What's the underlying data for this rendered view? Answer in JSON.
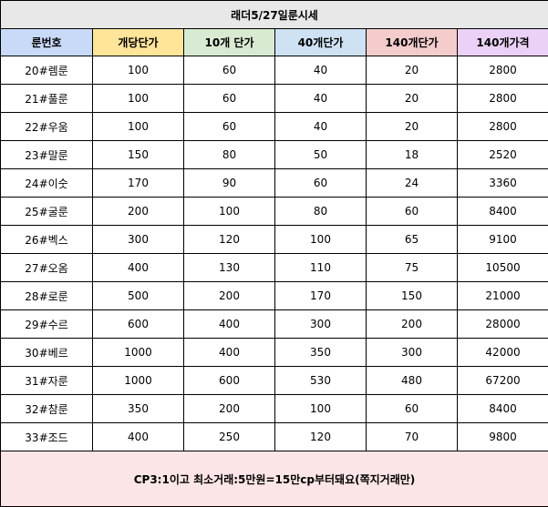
{
  "title": "래더5/27일룬시세",
  "headers": [
    "룬번호",
    "개당단가",
    "10개 단가",
    "40개단가",
    "140개단가",
    "140개가격"
  ],
  "rows": [
    {
      "rune": "20#렘룬",
      "unit": "100",
      "p10": "60",
      "p40": "40",
      "p140": "20",
      "total140": "2800"
    },
    {
      "rune": "21#풀룬",
      "unit": "100",
      "p10": "60",
      "p40": "40",
      "p140": "20",
      "total140": "2800"
    },
    {
      "rune": "22#우움",
      "unit": "100",
      "p10": "60",
      "p40": "40",
      "p140": "20",
      "total140": "2800"
    },
    {
      "rune": "23#말룬",
      "unit": "150",
      "p10": "80",
      "p40": "50",
      "p140": "18",
      "total140": "2520"
    },
    {
      "rune": "24#이숫",
      "unit": "170",
      "p10": "90",
      "p40": "60",
      "p140": "24",
      "total140": "3360"
    },
    {
      "rune": "25#굴룬",
      "unit": "200",
      "p10": "100",
      "p40": "80",
      "p140": "60",
      "total140": "8400"
    },
    {
      "rune": "26#벡스",
      "unit": "300",
      "p10": "120",
      "p40": "100",
      "p140": "65",
      "total140": "9100"
    },
    {
      "rune": "27#오옴",
      "unit": "400",
      "p10": "130",
      "p40": "110",
      "p140": "75",
      "total140": "10500"
    },
    {
      "rune": "28#로룬",
      "unit": "500",
      "p10": "200",
      "p40": "170",
      "p140": "150",
      "total140": "21000"
    },
    {
      "rune": "29#수르",
      "unit": "600",
      "p10": "400",
      "p40": "300",
      "p140": "200",
      "total140": "28000"
    },
    {
      "rune": "30#베르",
      "unit": "1000",
      "p10": "400",
      "p40": "350",
      "p140": "300",
      "total140": "42000"
    },
    {
      "rune": "31#자룬",
      "unit": "1000",
      "p10": "600",
      "p40": "530",
      "p140": "480",
      "total140": "67200"
    },
    {
      "rune": "32#참룬",
      "unit": "350",
      "p10": "200",
      "p40": "100",
      "p140": "60",
      "total140": "8400"
    },
    {
      "rune": "33#조드",
      "unit": "400",
      "p10": "250",
      "p40": "120",
      "p140": "70",
      "total140": "9800"
    }
  ],
  "footer": "CP3:1이고 최소거래:5만원=15만cp부터돼요(쪽지거래만)",
  "colors": {
    "title_bg": "#e8e8e8",
    "header_bgs": [
      "#c9daf8",
      "#ffe599",
      "#d9ead3",
      "#cfe2f3",
      "#f4cccc",
      "#ead1f5"
    ],
    "footer_bg": "#fce5e6"
  }
}
